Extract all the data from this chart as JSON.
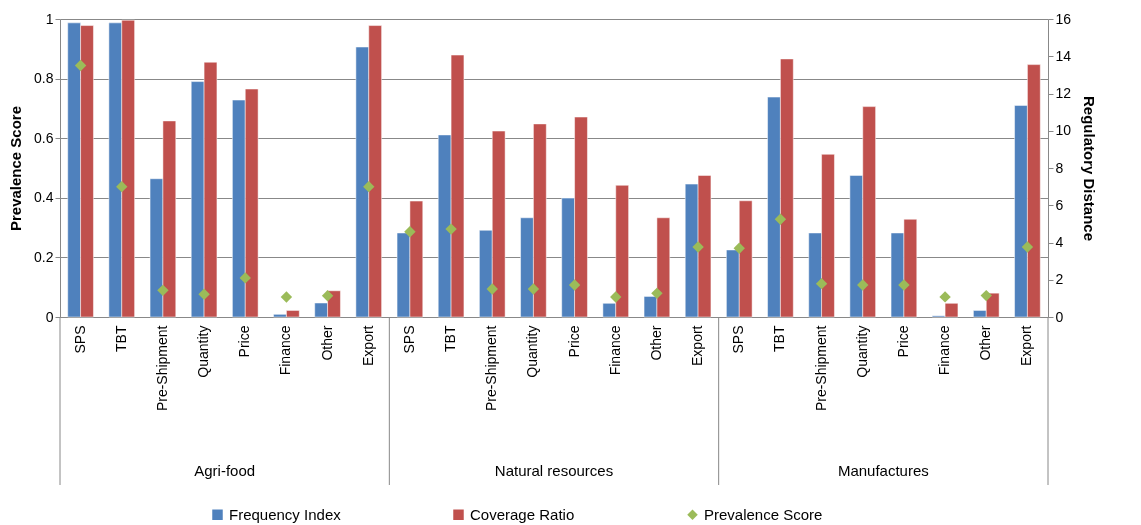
{
  "chart_data": {
    "type": "bar",
    "categories": [
      "SPS",
      "TBT",
      "Pre-Shipment",
      "Quantity",
      "Price",
      "Finance",
      "Other",
      "Export",
      "SPS",
      "TBT",
      "Pre-Shipment",
      "Quantity",
      "Price",
      "Finance",
      "Other",
      "Export",
      "SPS",
      "TBT",
      "Pre-Shipment",
      "Quantity",
      "Price",
      "Finance",
      "Other",
      "Export"
    ],
    "series": [
      {
        "name": "Frequency Index",
        "type": "bar",
        "color": "#4f81bd",
        "values": [
          0.987,
          0.987,
          0.464,
          0.79,
          0.728,
          0.009,
          0.047,
          0.906,
          0.282,
          0.611,
          0.291,
          0.333,
          0.399,
          0.046,
          0.069,
          0.446,
          0.225,
          0.738,
          0.282,
          0.475,
          0.282,
          0.004,
          0.022,
          0.71
        ]
      },
      {
        "name": "Coverage Ratio",
        "type": "bar",
        "color": "#c0504d",
        "values": [
          0.978,
          0.996,
          0.658,
          0.855,
          0.765,
          0.022,
          0.088,
          0.978,
          0.389,
          0.879,
          0.624,
          0.648,
          0.671,
          0.442,
          0.333,
          0.475,
          0.39,
          0.866,
          0.546,
          0.706,
          0.328,
          0.046,
          0.08,
          0.847
        ]
      },
      {
        "name": "Prevalence Score",
        "type": "scatter",
        "axis": "y2",
        "marker": "diamond",
        "color": "#9bbb59",
        "values": [
          13.5,
          7.0,
          1.43,
          1.22,
          2.1,
          1.07,
          1.14,
          7.0,
          4.58,
          4.72,
          1.5,
          1.5,
          1.72,
          1.07,
          1.27,
          3.76,
          3.69,
          5.25,
          1.79,
          1.72,
          1.72,
          1.08,
          1.15,
          3.76
        ]
      }
    ],
    "ylabel": "Prevalence Score",
    "y2label": "Regulatory Distance",
    "ylim": [
      0,
      1
    ],
    "yticks": [
      0,
      0.2,
      0.4,
      0.6,
      0.8,
      1
    ],
    "y2lim": [
      0,
      16
    ],
    "y2ticks": [
      0,
      2,
      4,
      6,
      8,
      10,
      12,
      14,
      16
    ],
    "grid": "y",
    "legend": "bottom",
    "annotations": [
      "Agri-food",
      "Natural resources",
      "Manufactures"
    ]
  }
}
